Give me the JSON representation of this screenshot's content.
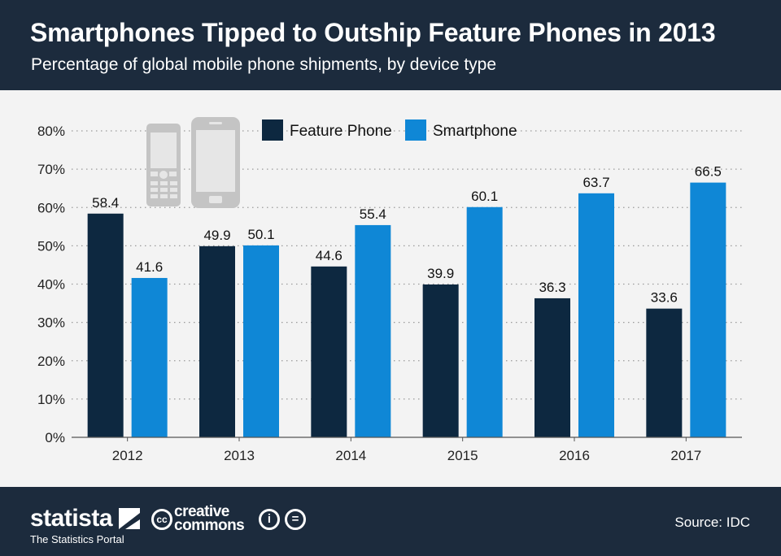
{
  "header": {
    "title": "Smartphones Tipped to Outship Feature Phones in 2013",
    "subtitle": "Percentage of global mobile phone shipments, by device type"
  },
  "footer": {
    "brand": "statista",
    "brand_tagline": "The Statistics Portal",
    "cc_symbol": "cc",
    "cc_line1": "creative",
    "cc_line2": "commons",
    "attribution_symbol": "i",
    "noderivs_symbol": "=",
    "source": "Source: IDC"
  },
  "colors": {
    "feature_phone": "#0d2840",
    "smartphone": "#0f87d6",
    "header_bg": "#1c2b3d",
    "plot_bg": "#f3f3f3"
  },
  "chart_data": {
    "type": "bar",
    "title": "Smartphones Tipped to Outship Feature Phones in 2013",
    "subtitle": "Percentage of global mobile phone shipments, by device type",
    "categories": [
      "2012",
      "2013",
      "2014",
      "2015",
      "2016",
      "2017"
    ],
    "series": [
      {
        "name": "Feature Phone",
        "values": [
          58.4,
          49.9,
          44.6,
          39.9,
          36.3,
          33.6
        ]
      },
      {
        "name": "Smartphone",
        "values": [
          41.6,
          50.1,
          55.4,
          60.1,
          63.7,
          66.5
        ]
      }
    ],
    "value_labels": {
      "Feature Phone": [
        "58.4",
        "49.9",
        "44.6",
        "39.9",
        "36.3",
        "33.6"
      ],
      "Smartphone": [
        "41.6",
        "50.1",
        "55.4",
        "60.1",
        "63.7",
        "66.5"
      ]
    },
    "y_ticks": [
      0,
      10,
      20,
      30,
      40,
      50,
      60,
      70,
      80
    ],
    "y_tick_labels": [
      "0%",
      "10%",
      "20%",
      "30%",
      "40%",
      "50%",
      "60%",
      "70%",
      "80%"
    ],
    "ylim": [
      0,
      80
    ],
    "xlabel": "",
    "ylabel": "",
    "grid": true,
    "legend_position": "top-center"
  }
}
